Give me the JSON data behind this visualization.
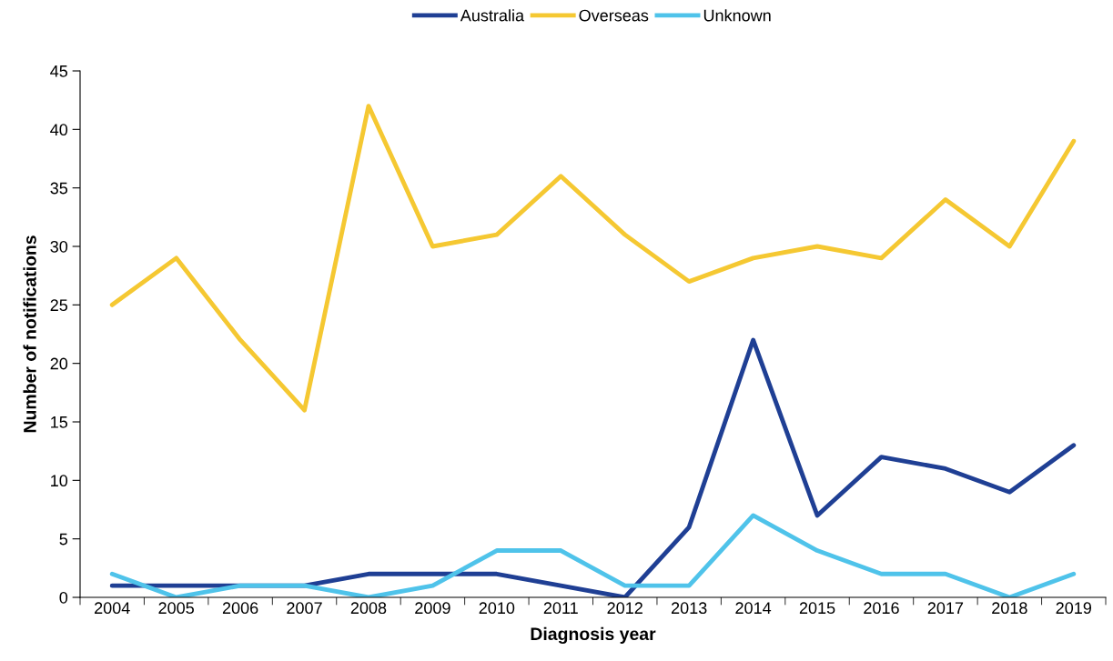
{
  "chart_data": {
    "type": "line",
    "xlabel": "Diagnosis year",
    "ylabel": "Number of notifications",
    "categories": [
      "2004",
      "2005",
      "2006",
      "2007",
      "2008",
      "2009",
      "2010",
      "2011",
      "2012",
      "2013",
      "2014",
      "2015",
      "2016",
      "2017",
      "2018",
      "2019"
    ],
    "series": [
      {
        "name": "Australia",
        "color": "#1f3f94",
        "values": [
          1,
          1,
          1,
          1,
          2,
          2,
          2,
          1,
          0,
          6,
          22,
          7,
          12,
          11,
          9,
          13
        ]
      },
      {
        "name": "Overseas",
        "color": "#f5c832",
        "values": [
          25,
          29,
          22,
          16,
          42,
          30,
          31,
          36,
          31,
          27,
          29,
          30,
          29,
          34,
          30,
          39
        ]
      },
      {
        "name": "Unknown",
        "color": "#4fc3ea",
        "values": [
          2,
          0,
          1,
          1,
          0,
          1,
          4,
          4,
          1,
          1,
          7,
          4,
          2,
          2,
          0,
          2
        ]
      }
    ],
    "ylim": [
      0,
      45
    ],
    "yticks": [
      0,
      5,
      10,
      15,
      20,
      25,
      30,
      35,
      40,
      45
    ],
    "grid": false,
    "legend": "top",
    "marker": "none",
    "line_style": "solid"
  }
}
